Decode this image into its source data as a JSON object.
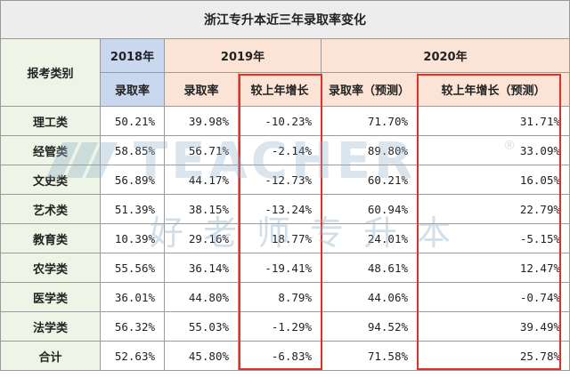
{
  "title": "浙江专升本近三年录取率变化",
  "header": {
    "category_label": "报考类别",
    "year_2018": "2018年",
    "year_2019": "2019年",
    "year_2020": "2020年",
    "rate_2018": "录取率",
    "rate_2019": "录取率",
    "growth_2019": "较上年增长",
    "rate_2020": "录取率（预测）",
    "growth_2020": "较上年增长（预测）"
  },
  "rows": [
    {
      "category": "理工类",
      "r2018": "50.21%",
      "r2019": "39.98%",
      "g2019": "-10.23%",
      "r2020": "71.70%",
      "g2020": "31.71%"
    },
    {
      "category": "经管类",
      "r2018": "58.85%",
      "r2019": "56.71%",
      "g2019": "-2.14%",
      "r2020": "89.80%",
      "g2020": "33.09%"
    },
    {
      "category": "文史类",
      "r2018": "56.89%",
      "r2019": "44.17%",
      "g2019": "-12.73%",
      "r2020": "60.21%",
      "g2020": "16.05%"
    },
    {
      "category": "艺术类",
      "r2018": "51.39%",
      "r2019": "38.15%",
      "g2019": "-13.24%",
      "r2020": "60.94%",
      "g2020": "22.79%"
    },
    {
      "category": "教育类",
      "r2018": "10.39%",
      "r2019": "29.16%",
      "g2019": "18.77%",
      "r2020": "24.01%",
      "g2020": "-5.15%"
    },
    {
      "category": "农学类",
      "r2018": "55.56%",
      "r2019": "36.14%",
      "g2019": "-19.41%",
      "r2020": "48.61%",
      "g2020": "12.47%"
    },
    {
      "category": "医学类",
      "r2018": "36.01%",
      "r2019": "44.80%",
      "g2019": "8.79%",
      "r2020": "44.06%",
      "g2020": "-0.74%"
    },
    {
      "category": "法学类",
      "r2018": "56.32%",
      "r2019": "55.03%",
      "g2019": "-1.29%",
      "r2020": "94.52%",
      "g2020": "39.49%"
    },
    {
      "category": "合计",
      "r2018": "52.63%",
      "r2019": "45.80%",
      "g2019": "-6.83%",
      "r2020": "71.58%",
      "g2020": "25.78%"
    }
  ],
  "watermark": {
    "brand": "TEACHER",
    "registered": "®",
    "slogan": "好老师专升本"
  },
  "colors": {
    "header_2018": "#c9d7ef",
    "header_2019_2020": "#fbe4d5",
    "row_header": "#eef4e6",
    "highlight_border": "#e0302a"
  }
}
